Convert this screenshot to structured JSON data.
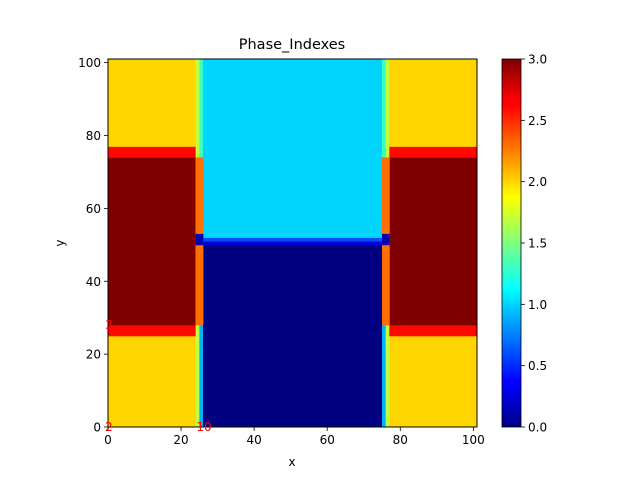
{
  "chart_data": {
    "type": "heatmap",
    "title": "Phase_Indexes",
    "xlabel": "x",
    "ylabel": "y",
    "xlim": [
      0,
      101
    ],
    "ylim": [
      0,
      101
    ],
    "x_ticks": [
      "0",
      "20",
      "40",
      "60",
      "80",
      "100"
    ],
    "y_ticks": [
      "0",
      "20",
      "40",
      "60",
      "80",
      "100"
    ],
    "colorbar": {
      "colormap": "jet",
      "range": [
        0.0,
        3.0
      ],
      "ticks": [
        "0.0",
        "0.5",
        "1.0",
        "1.5",
        "2.0",
        "2.5",
        "3.0"
      ]
    },
    "regions": [
      {
        "x0": 0,
        "x1": 24,
        "y0": 0,
        "y1": 25,
        "value": 2.0
      },
      {
        "x0": 0,
        "x1": 24,
        "y0": 25,
        "y1": 28,
        "value": 2.6
      },
      {
        "x0": 0,
        "x1": 24,
        "y0": 28,
        "y1": 74,
        "value": 3.0
      },
      {
        "x0": 0,
        "x1": 24,
        "y0": 74,
        "y1": 77,
        "value": 2.6
      },
      {
        "x0": 0,
        "x1": 24,
        "y0": 77,
        "y1": 101,
        "value": 2.0
      },
      {
        "x0": 24,
        "x1": 25,
        "y0": 0,
        "y1": 101,
        "value": 1.7
      },
      {
        "x0": 25,
        "x1": 26,
        "y0": 0,
        "y1": 50,
        "value": 0.9
      },
      {
        "x0": 25,
        "x1": 26,
        "y0": 50,
        "y1": 53,
        "value": 0.5
      },
      {
        "x0": 25,
        "x1": 26,
        "y0": 53,
        "y1": 101,
        "value": 1.3
      },
      {
        "x0": 26,
        "x1": 75,
        "y0": 0,
        "y1": 50,
        "value": 0.0
      },
      {
        "x0": 26,
        "x1": 75,
        "y0": 50,
        "y1": 51,
        "value": 0.25
      },
      {
        "x0": 26,
        "x1": 75,
        "y0": 51,
        "y1": 52,
        "value": 0.6
      },
      {
        "x0": 26,
        "x1": 75,
        "y0": 52,
        "y1": 101,
        "value": 1.0
      },
      {
        "x0": 75,
        "x1": 76,
        "y0": 0,
        "y1": 50,
        "value": 0.9
      },
      {
        "x0": 75,
        "x1": 76,
        "y0": 50,
        "y1": 53,
        "value": 0.5
      },
      {
        "x0": 75,
        "x1": 76,
        "y0": 53,
        "y1": 101,
        "value": 1.3
      },
      {
        "x0": 76,
        "x1": 77,
        "y0": 0,
        "y1": 101,
        "value": 1.7
      },
      {
        "x0": 77,
        "x1": 101,
        "y0": 0,
        "y1": 25,
        "value": 2.0
      },
      {
        "x0": 77,
        "x1": 101,
        "y0": 25,
        "y1": 28,
        "value": 2.6
      },
      {
        "x0": 77,
        "x1": 101,
        "y0": 28,
        "y1": 74,
        "value": 3.0
      },
      {
        "x0": 77,
        "x1": 101,
        "y0": 74,
        "y1": 77,
        "value": 2.6
      },
      {
        "x0": 77,
        "x1": 101,
        "y0": 77,
        "y1": 101,
        "value": 2.0
      },
      {
        "x0": 24,
        "x1": 26,
        "y0": 28,
        "y1": 74,
        "value": 2.3
      },
      {
        "x0": 75,
        "x1": 77,
        "y0": 28,
        "y1": 74,
        "value": 2.3
      },
      {
        "x0": 24,
        "x1": 26,
        "y0": 50,
        "y1": 53,
        "value": 0.15
      },
      {
        "x0": 75,
        "x1": 77,
        "y0": 50,
        "y1": 53,
        "value": 0.15
      }
    ],
    "annotations": [
      {
        "text": "2",
        "x": 0,
        "y": 0,
        "color": "#ff0000"
      },
      {
        "text": "10",
        "x": 25,
        "y": 0,
        "color": "#ff0000"
      },
      {
        "text": "3",
        "x": 0,
        "y": 28,
        "color": "#ff0000"
      }
    ]
  }
}
